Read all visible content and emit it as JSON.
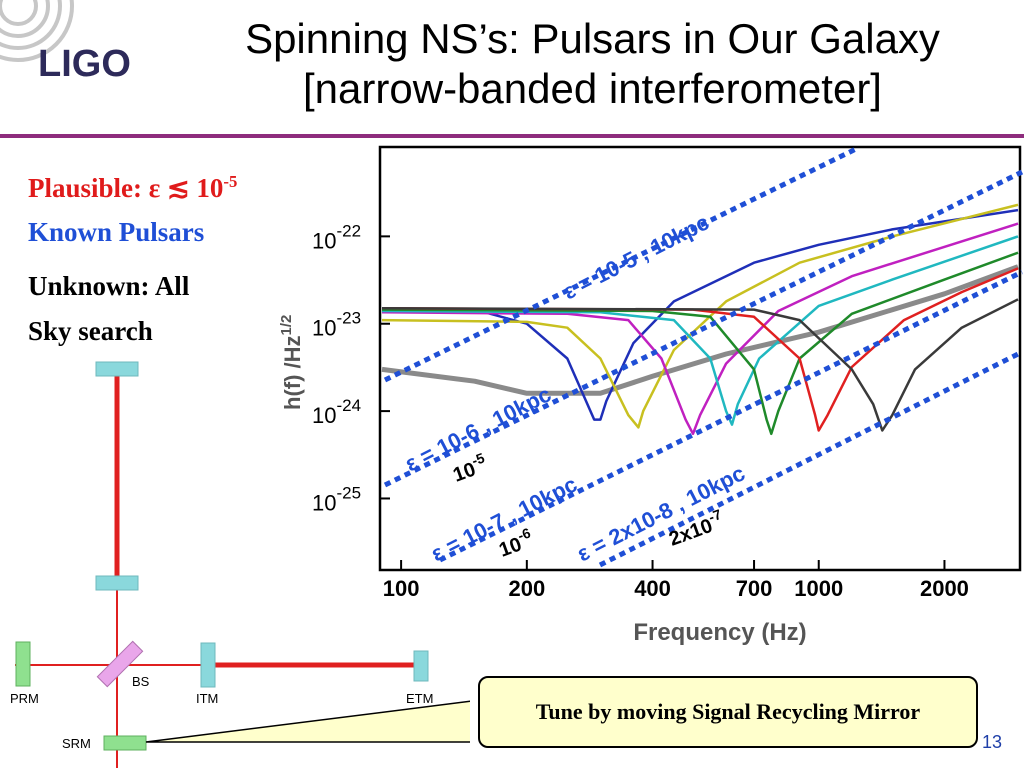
{
  "logo": {
    "text": "LIGO"
  },
  "title": {
    "line1": "Spinning NS’s: Pulsars in Our Galaxy",
    "line2": "[narrow-banded interferometer]"
  },
  "left": {
    "plausible_label": "Plausible: ε ≲ 10",
    "plausible_exp": "-5",
    "known": "Known Pulsars",
    "unknown_line1": "Unknown: All",
    "unknown_line2": "Sky search"
  },
  "diagram": {
    "labels": {
      "prm": "PRM",
      "bs": "BS",
      "itm": "ITM",
      "etm": "ETM",
      "srm": "SRM"
    }
  },
  "callout": {
    "text": "Tune by moving Signal Recycling Mirror"
  },
  "page_number": "13",
  "colors": {
    "accent_rule": "#8e2c7d",
    "title_red": "#e01b1b",
    "link_blue": "#1f4fd6",
    "callout_bg": "#ffffcc",
    "beam_red": "#e02020",
    "mirror_cyan": "#8ad8dc",
    "mirror_green": "#8fe08f",
    "mirror_pink": "#e9a6ea"
  },
  "chart_data": {
    "type": "line",
    "xlabel": "Frequency (Hz)",
    "ylabel": "h(f) /Hz",
    "ylabel_exp": "1/2",
    "x_scale": "log",
    "y_scale": "log",
    "xlim": [
      90,
      3000
    ],
    "ylim": [
      1.6e-26,
      1e-21
    ],
    "x_ticks": [
      {
        "value": 100,
        "label": "100"
      },
      {
        "value": 200,
        "label": "200"
      },
      {
        "value": 400,
        "label": "400"
      },
      {
        "value": 700,
        "label": "700"
      },
      {
        "value": 1000,
        "label": "1000"
      },
      {
        "value": 2000,
        "label": "2000"
      }
    ],
    "y_ticks": [
      {
        "value": 1e-22,
        "base": "10",
        "exp": "-22"
      },
      {
        "value": 1e-23,
        "base": "10",
        "exp": "-23"
      },
      {
        "value": 1e-24,
        "base": "10",
        "exp": "-24"
      },
      {
        "value": 1e-25,
        "base": "10",
        "exp": "-25"
      }
    ],
    "grid": false,
    "series": [
      {
        "color": "#8a8a8a",
        "x": [
          90,
          150,
          200,
          300,
          400,
          600,
          1000,
          2000,
          3000
        ],
        "y": [
          3e-24,
          2.2e-24,
          1.6e-24,
          1.6e-24,
          2.5e-24,
          4.5e-24,
          8e-24,
          2.2e-23,
          4.5e-23
        ]
      },
      {
        "color": "#1f2fb8",
        "x": [
          90,
          150,
          200,
          250,
          290,
          300,
          310,
          360,
          450,
          700,
          1000,
          1500,
          3000
        ],
        "y": [
          1.5e-23,
          1.45e-23,
          1e-23,
          4e-24,
          8e-25,
          8e-25,
          1.3e-24,
          6e-24,
          1.8e-23,
          5e-23,
          8e-23,
          1.2e-22,
          2e-22
        ]
      },
      {
        "color": "#c8c020",
        "x": [
          90,
          200,
          250,
          300,
          350,
          370,
          380,
          450,
          600,
          900,
          1500,
          3000
        ],
        "y": [
          1.1e-23,
          1.05e-23,
          9e-24,
          4e-24,
          9e-25,
          6.5e-25,
          1e-24,
          5e-24,
          1.8e-23,
          5e-23,
          1e-22,
          2.3e-22
        ]
      },
      {
        "color": "#c020c0",
        "x": [
          90,
          250,
          350,
          420,
          480,
          500,
          520,
          600,
          800,
          1200,
          3000
        ],
        "y": [
          1.35e-23,
          1.3e-23,
          1.1e-23,
          4e-24,
          8e-25,
          5.5e-25,
          9e-25,
          3.5e-24,
          1.4e-23,
          3.5e-23,
          1.4e-22
        ]
      },
      {
        "color": "#20b8c0",
        "x": [
          90,
          300,
          450,
          550,
          600,
          620,
          640,
          720,
          1000,
          1500,
          3000
        ],
        "y": [
          1.4e-23,
          1.35e-23,
          1.1e-23,
          4e-24,
          1e-24,
          7e-25,
          1.2e-24,
          4e-24,
          1.6e-23,
          3.2e-23,
          1e-22
        ]
      },
      {
        "color": "#1f8a2a",
        "x": [
          90,
          400,
          550,
          700,
          750,
          770,
          800,
          900,
          1200,
          2000,
          3000
        ],
        "y": [
          1.45e-23,
          1.4e-23,
          1.2e-23,
          3e-24,
          8e-25,
          5.5e-25,
          1e-24,
          4e-24,
          1.3e-23,
          3.2e-23,
          6.5e-23
        ]
      },
      {
        "color": "#e02020",
        "x": [
          90,
          500,
          700,
          900,
          980,
          1000,
          1050,
          1200,
          1600,
          2200,
          3000
        ],
        "y": [
          1.5e-23,
          1.45e-23,
          1.2e-23,
          4e-24,
          9e-25,
          6e-25,
          9e-25,
          3.2e-24,
          1.1e-23,
          2.3e-23,
          4.3e-23
        ]
      },
      {
        "color": "#3a3a3a",
        "x": [
          90,
          700,
          900,
          1200,
          1350,
          1420,
          1500,
          1700,
          2200,
          3000
        ],
        "y": [
          1.5e-23,
          1.45e-23,
          1.1e-23,
          3e-24,
          1.2e-24,
          6e-25,
          9e-25,
          3e-24,
          9e-24,
          1.9e-23
        ]
      }
    ],
    "annotations": [
      {
        "text": "ε = 10-5 , 10kpc",
        "color": "#1f4fd6"
      },
      {
        "text": "ε = 10-6 , 10kpc",
        "color": "#1f4fd6"
      },
      {
        "text": "ε = 10-7 , 10kpc",
        "color": "#1f4fd6"
      },
      {
        "text": "ε = 2x10-8 , 10kpc",
        "color": "#1f4fd6"
      },
      {
        "base": "10",
        "exp": "-5",
        "color": "#000000"
      },
      {
        "base": "10",
        "exp": "-6",
        "color": "#000000"
      },
      {
        "base": "2x10",
        "exp": "-7",
        "color": "#000000"
      }
    ]
  }
}
